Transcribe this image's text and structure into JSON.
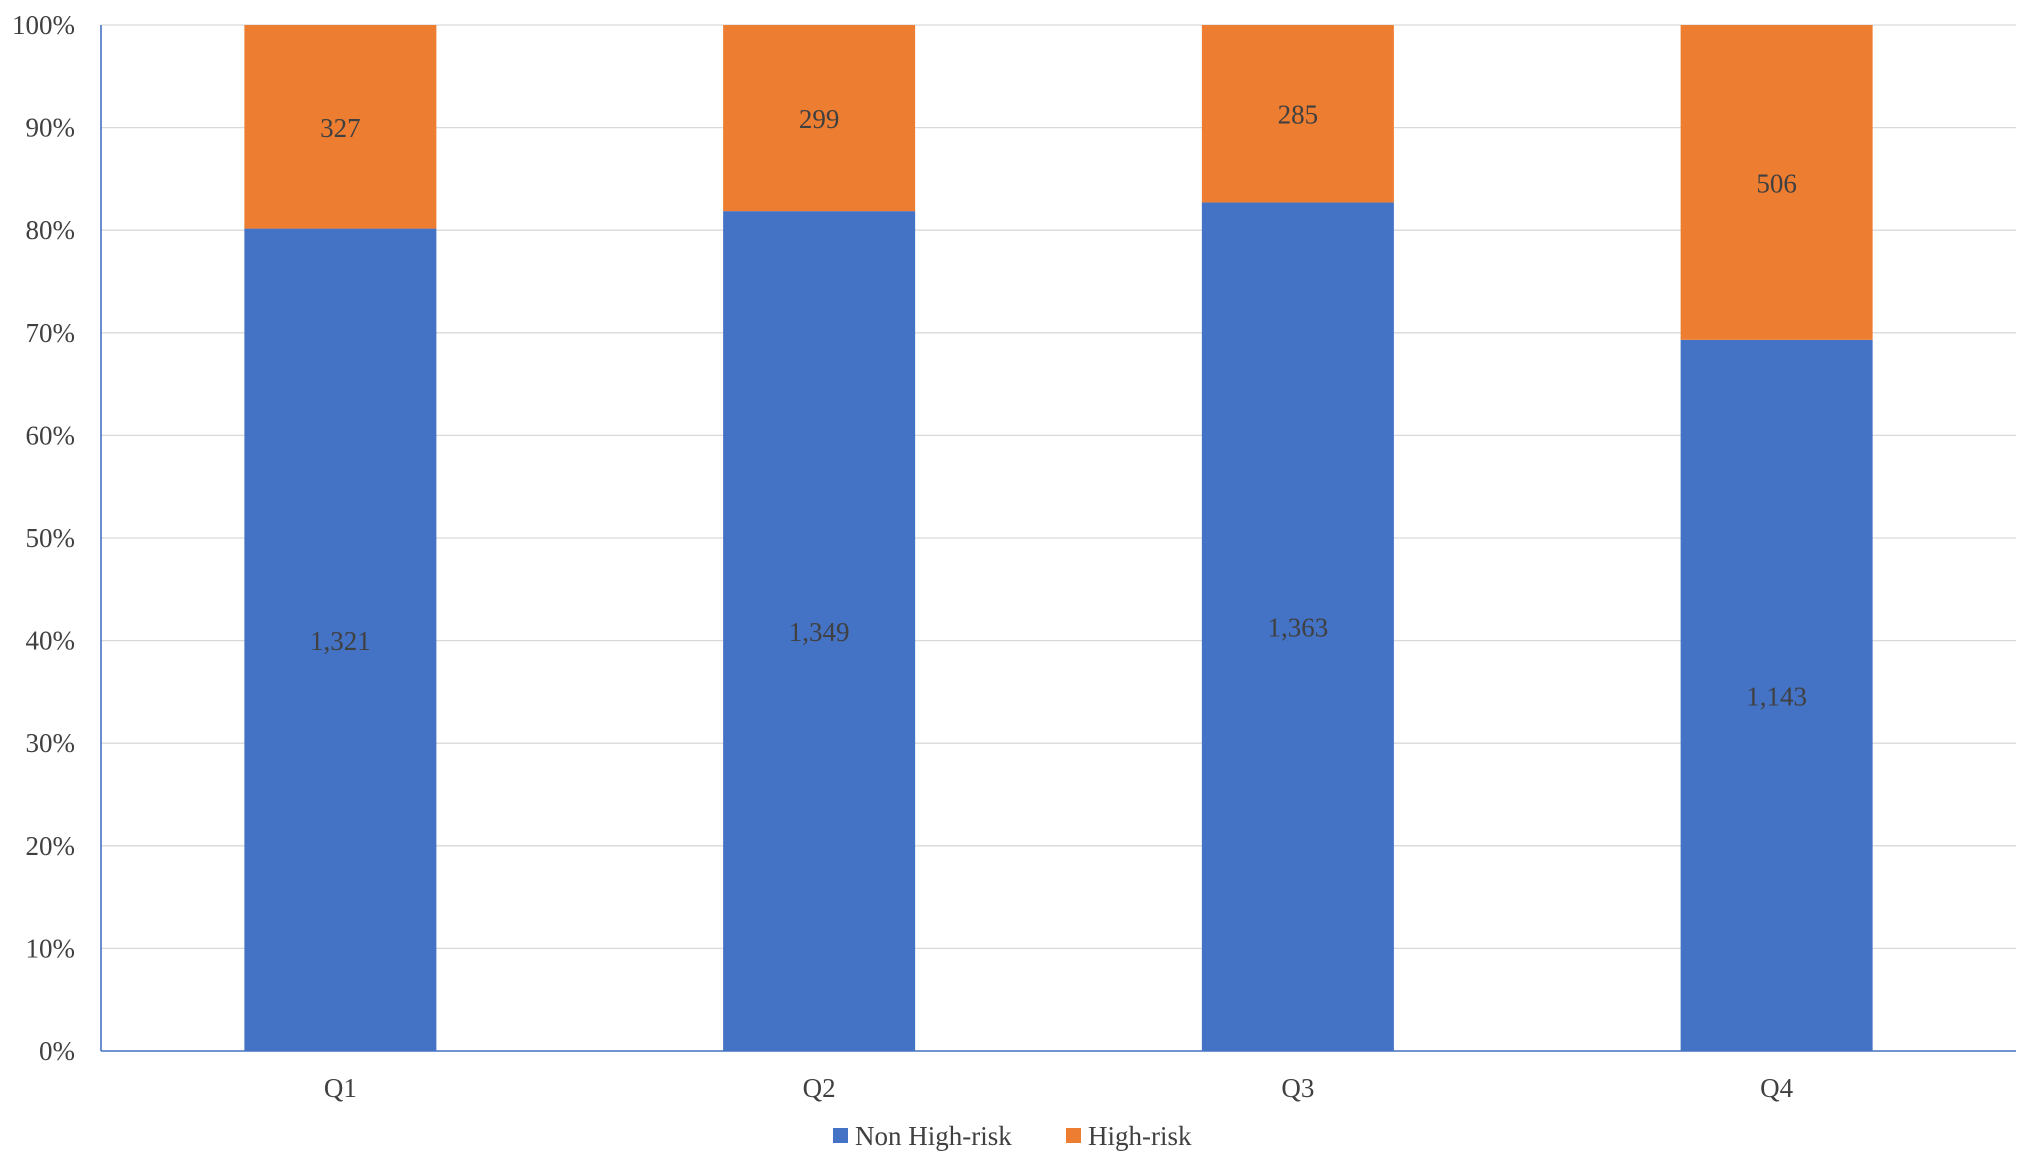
{
  "chart_data": {
    "type": "bar",
    "stacked": true,
    "normalized": true,
    "categories": [
      "Q1",
      "Q2",
      "Q3",
      "Q4"
    ],
    "series": [
      {
        "name": "Non High-risk",
        "values": [
          1321,
          1349,
          1363,
          1143
        ],
        "color": "#4472c4"
      },
      {
        "name": "High-risk",
        "values": [
          327,
          299,
          285,
          506
        ],
        "color": "#ed7d31"
      }
    ],
    "value_labels": [
      [
        "1,321",
        "1,349",
        "1,363",
        "1,143"
      ],
      [
        "327",
        "299",
        "285",
        "506"
      ]
    ],
    "yticks": [
      "0%",
      "10%",
      "20%",
      "30%",
      "40%",
      "50%",
      "60%",
      "70%",
      "80%",
      "90%",
      "100%"
    ],
    "ylim": [
      0,
      100
    ],
    "grid": true,
    "legend_position": "bottom"
  }
}
